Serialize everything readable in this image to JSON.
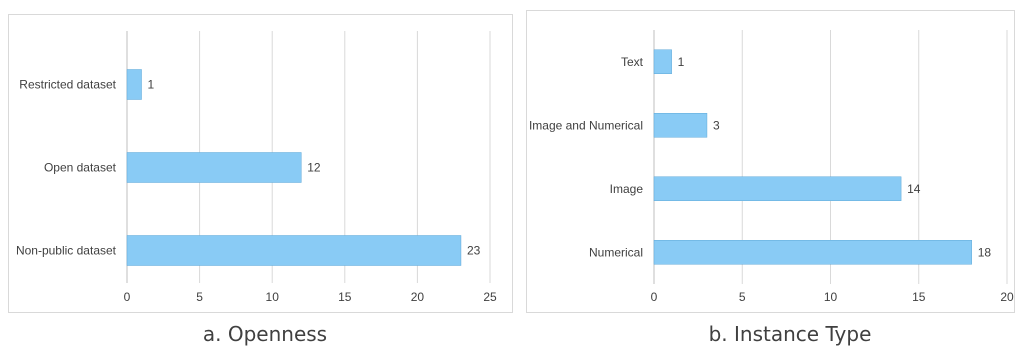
{
  "chart_data": [
    {
      "type": "bar",
      "orientation": "horizontal",
      "title": "a. Openness",
      "categories": [
        "Restricted dataset",
        "Open dataset",
        "Non-public dataset"
      ],
      "values": [
        1,
        12,
        23
      ],
      "xlim": [
        0,
        25
      ],
      "xticks": [
        0,
        5,
        10,
        15,
        20,
        25
      ],
      "grid": true,
      "bar_color": "#89CBF5"
    },
    {
      "type": "bar",
      "orientation": "horizontal",
      "title": "b. Instance Type",
      "categories": [
        "Text",
        "Image and Numerical",
        "Image",
        "Numerical"
      ],
      "values": [
        1,
        3,
        14,
        18
      ],
      "xlim": [
        0,
        20
      ],
      "xticks": [
        0,
        5,
        10,
        15,
        20
      ],
      "grid": true,
      "bar_color": "#89CBF5"
    }
  ]
}
